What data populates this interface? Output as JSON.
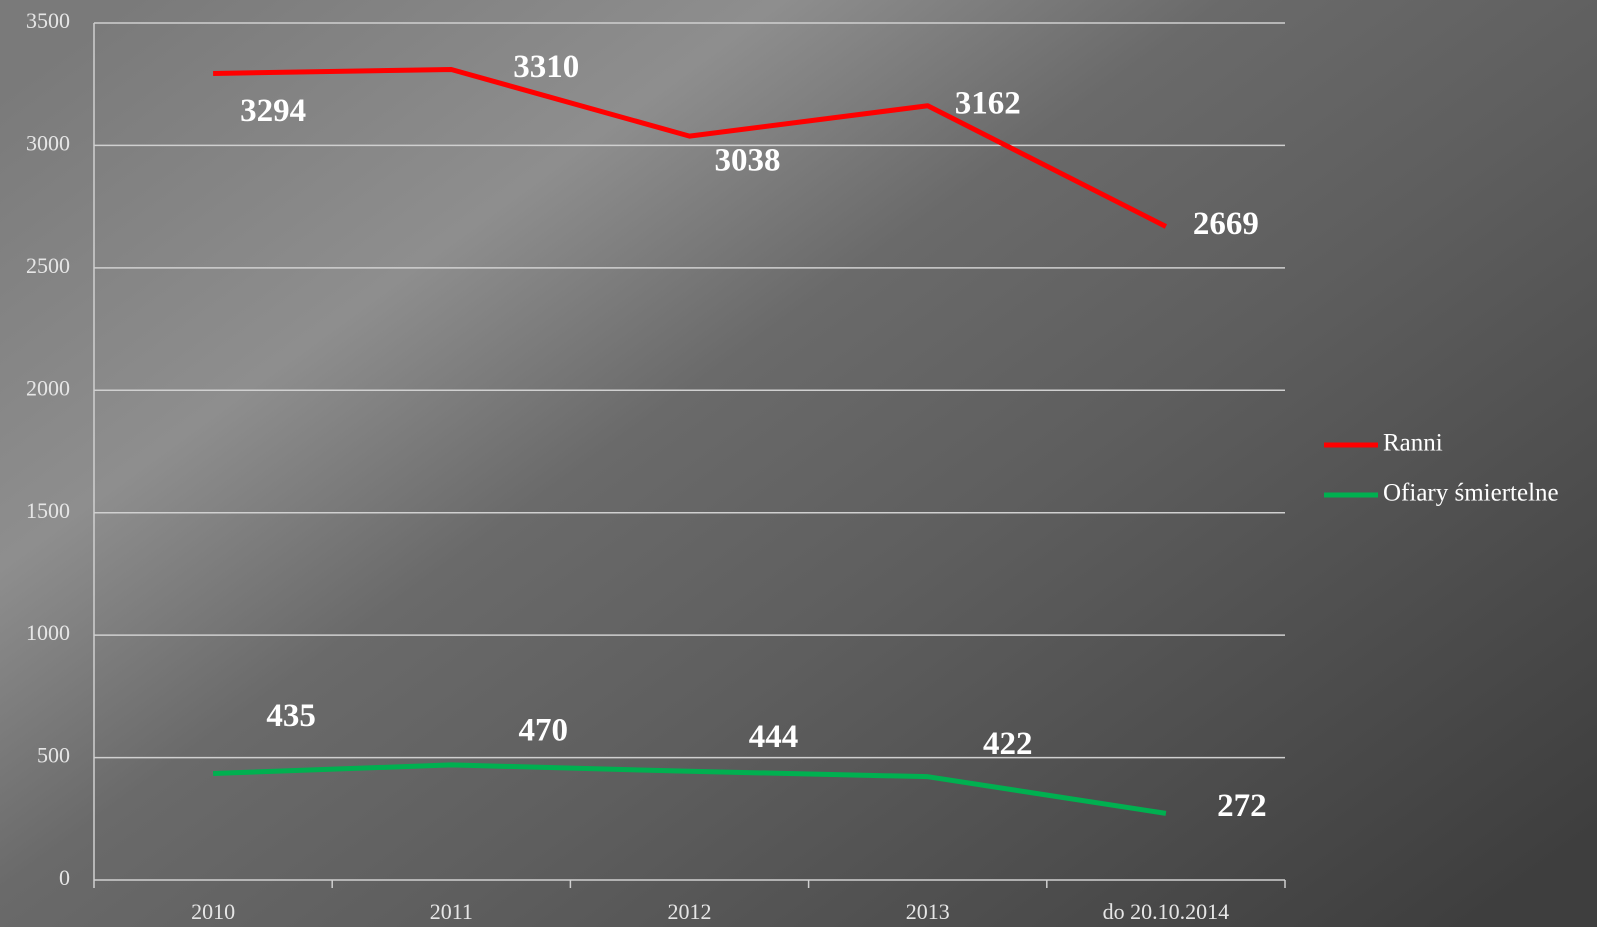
{
  "chart_data": {
    "type": "line",
    "categories": [
      "2010",
      "2011",
      "2012",
      "2013",
      "do 20.10.2014"
    ],
    "series": [
      {
        "name": "Ranni",
        "color": "#ff0000",
        "values": [
          3294,
          3310,
          3038,
          3162,
          2669
        ]
      },
      {
        "name": "Ofiary śmiertelne",
        "color": "#00b050",
        "values": [
          435,
          470,
          444,
          422,
          272
        ]
      }
    ],
    "ylim": [
      0,
      3500
    ],
    "yticks": [
      0,
      500,
      1000,
      1500,
      2000,
      2500,
      3000,
      3500
    ],
    "grid": true,
    "legend": "right"
  }
}
